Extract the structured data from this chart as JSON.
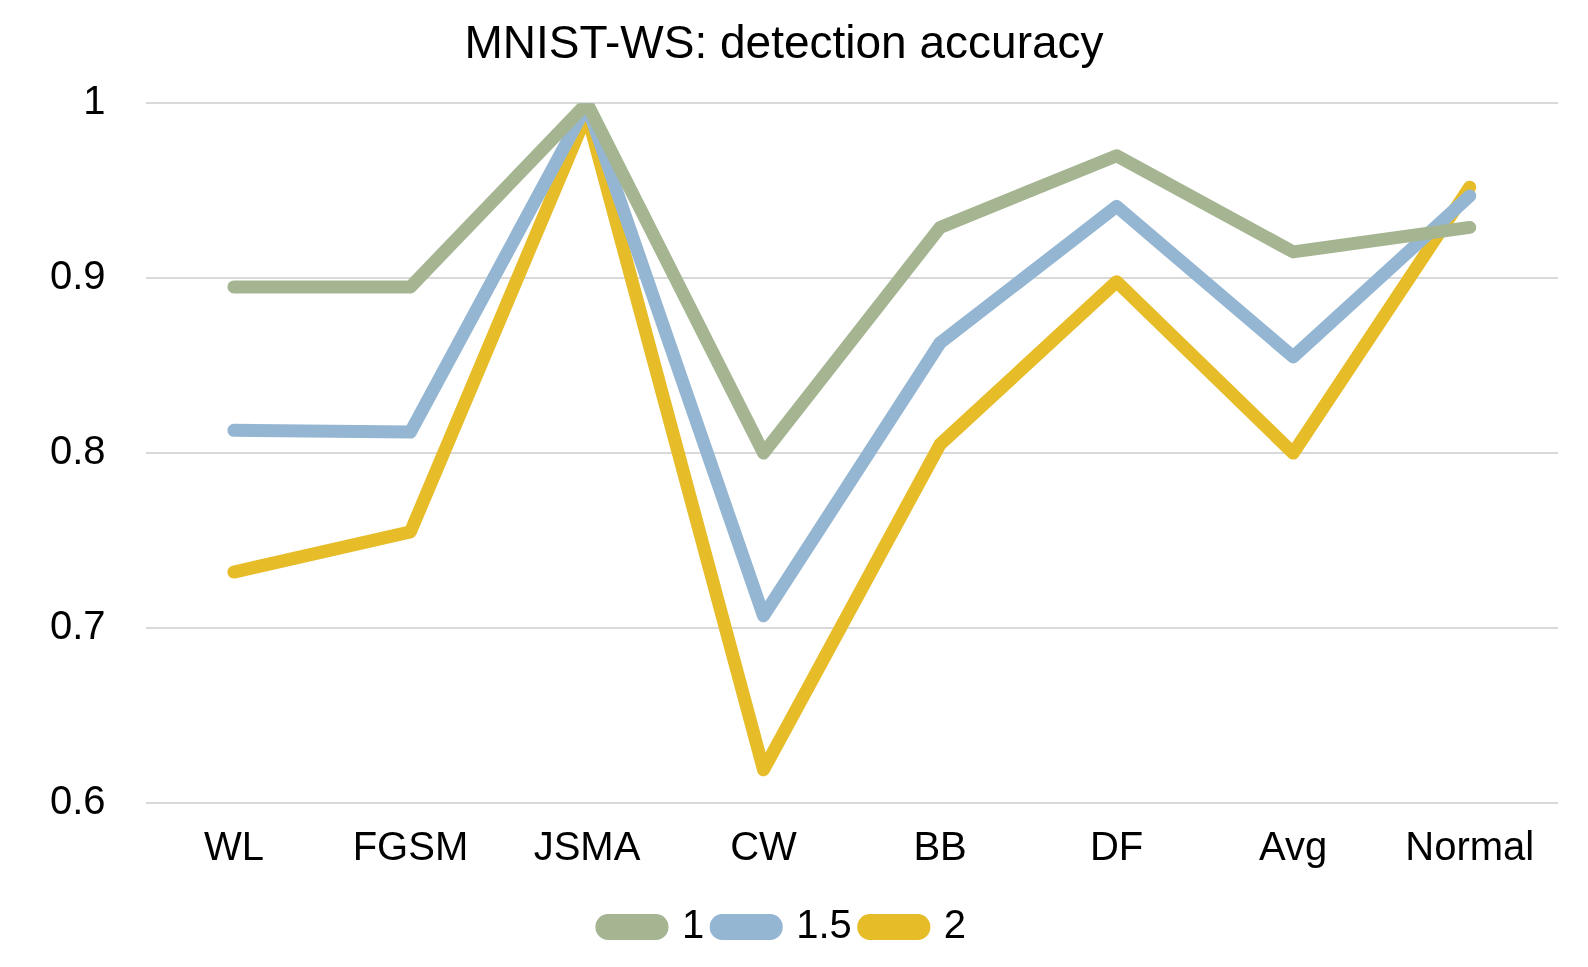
{
  "chart_data": {
    "type": "line",
    "title": "MNIST-WS: detection accuracy",
    "categories": [
      "WL",
      "FGSM",
      "JSMA",
      "CW",
      "BB",
      "DF",
      "Avg",
      "Normal"
    ],
    "series": [
      {
        "name": "1",
        "color": "#a5b592",
        "values": [
          0.895,
          0.895,
          1.0,
          0.8,
          0.929,
          0.97,
          0.915,
          0.929
        ]
      },
      {
        "name": "1.5",
        "color": "#94b6d2",
        "values": [
          0.813,
          0.812,
          0.999,
          0.707,
          0.863,
          0.941,
          0.855,
          0.947
        ]
      },
      {
        "name": "2",
        "color": "#e7bc29",
        "values": [
          0.732,
          0.755,
          0.994,
          0.619,
          0.805,
          0.898,
          0.8,
          0.952
        ]
      }
    ],
    "ylim": [
      0.6,
      1
    ],
    "yticks": [
      0.6,
      0.7,
      0.8,
      0.9,
      1
    ],
    "grid": "y",
    "legend": "bottom",
    "marker": "none",
    "line_style": "solid"
  }
}
